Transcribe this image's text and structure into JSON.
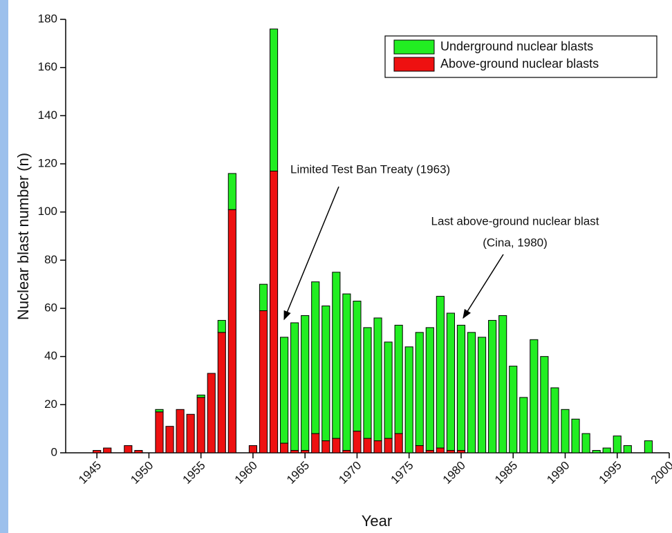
{
  "chart_data": {
    "type": "stacked-bar",
    "x_label": "Year",
    "y_label": "Nuclear blast number (n)",
    "x": [
      1945,
      1946,
      1947,
      1948,
      1949,
      1950,
      1951,
      1952,
      1953,
      1954,
      1955,
      1956,
      1957,
      1958,
      1959,
      1960,
      1961,
      1962,
      1963,
      1964,
      1965,
      1966,
      1967,
      1968,
      1969,
      1970,
      1971,
      1972,
      1973,
      1974,
      1975,
      1976,
      1977,
      1978,
      1979,
      1980,
      1981,
      1982,
      1983,
      1984,
      1985,
      1986,
      1987,
      1988,
      1989,
      1990,
      1991,
      1992,
      1993,
      1994,
      1995,
      1996,
      1997,
      1998
    ],
    "series": [
      {
        "name": "Underground nuclear blasts",
        "color": "#22ee22",
        "values": [
          0,
          0,
          0,
          0,
          0,
          0,
          1,
          0,
          0,
          0,
          1,
          0,
          5,
          15,
          0,
          0,
          11,
          59,
          44,
          53,
          56,
          63,
          56,
          69,
          65,
          54,
          46,
          51,
          40,
          45,
          44,
          47,
          51,
          63,
          57,
          52,
          50,
          48,
          55,
          57,
          36,
          23,
          47,
          40,
          27,
          18,
          14,
          8,
          1,
          2,
          7,
          3,
          0,
          5
        ]
      },
      {
        "name": "Above-ground nuclear blasts",
        "color": "#ee1111",
        "values": [
          1,
          2,
          0,
          3,
          1,
          0,
          17,
          11,
          18,
          16,
          23,
          33,
          50,
          101,
          0,
          3,
          59,
          117,
          4,
          1,
          1,
          8,
          5,
          6,
          1,
          9,
          6,
          5,
          6,
          8,
          0,
          3,
          1,
          2,
          1,
          1,
          0,
          0,
          0,
          0,
          0,
          0,
          0,
          0,
          0,
          0,
          0,
          0,
          0,
          0,
          0,
          0,
          0,
          0
        ]
      }
    ],
    "xlim": [
      1942,
      2000
    ],
    "xticks": [
      1945,
      1950,
      1955,
      1960,
      1965,
      1970,
      1975,
      1980,
      1985,
      1990,
      1995,
      2000
    ],
    "ylim": [
      0,
      180
    ],
    "yticks": [
      0,
      20,
      40,
      60,
      80,
      100,
      120,
      140,
      160,
      180
    ],
    "legend": "upper right",
    "annotations": [
      "Limited Test Ban Treaty (1963)",
      "Last above-ground nuclear blast",
      "(Cina, 1980)"
    ]
  }
}
